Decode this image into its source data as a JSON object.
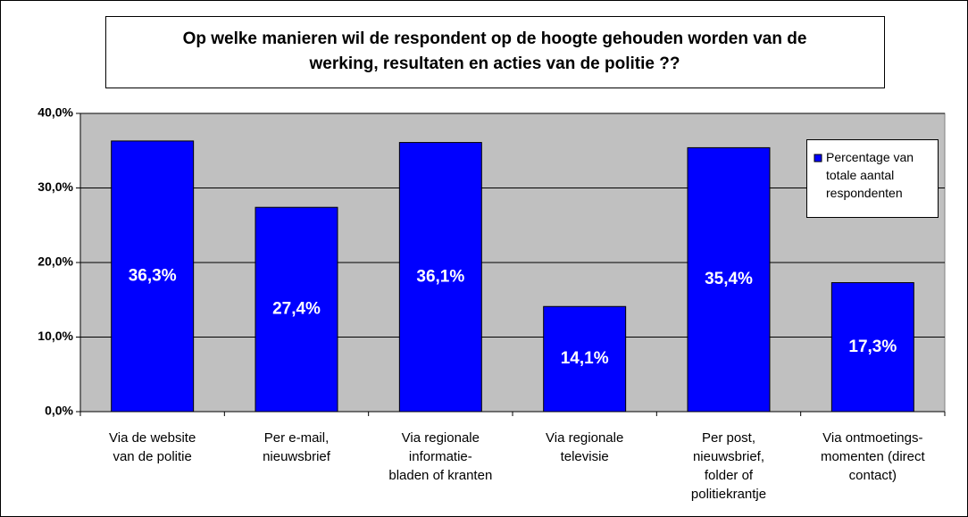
{
  "chart_data": {
    "type": "bar",
    "title": "Op welke manieren wil de respondent op de hoogte gehouden worden van de\nwerking, resultaten en acties van de politie ??",
    "categories": [
      "Via de website\nvan de politie",
      "Per e-mail,\nnieuwsbrief",
      "Via regionale\ninformatie-\nbladen of kranten",
      "Via regionale\ntelevisie",
      "Per post,\nnieuwsbrief,\nfolder of\npolitiekrantje",
      "Via ontmoetings-\nmomenten (direct\ncontact)"
    ],
    "series": [
      {
        "name": "Percentage van\ntotale aantal\nrespondenten",
        "color": "#0000ff",
        "values": [
          36.3,
          27.4,
          36.1,
          14.1,
          35.4,
          17.3
        ],
        "value_labels": [
          "36,3%",
          "27,4%",
          "36,1%",
          "14,1%",
          "35,4%",
          "17,3%"
        ]
      }
    ],
    "ylim": [
      0,
      40
    ],
    "yticks": [
      {
        "value": 0,
        "label": "0,0%"
      },
      {
        "value": 10,
        "label": "10,0%"
      },
      {
        "value": 20,
        "label": "20,0%"
      },
      {
        "value": 30,
        "label": "30,0%"
      },
      {
        "value": 40,
        "label": "40,0%"
      }
    ],
    "grid": true,
    "legend": "right"
  }
}
